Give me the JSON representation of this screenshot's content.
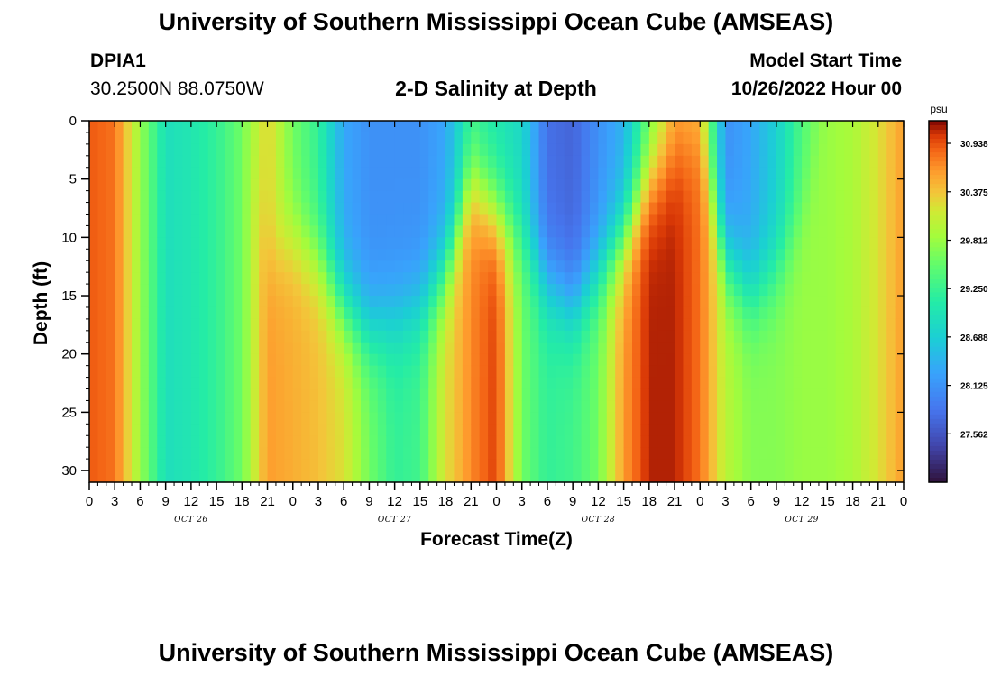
{
  "header": {
    "title": "University of Southern Mississippi Ocean Cube (AMSEAS)",
    "station_name": "DPIA1",
    "station_coords": "30.2500N  88.0750W",
    "subtitle": "2-D Salinity at Depth",
    "start_label": "Model Start Time",
    "start_value": "10/26/2022 Hour 00"
  },
  "footer": {
    "title": "University of Southern Mississippi Ocean Cube (AMSEAS)"
  },
  "chart_data": {
    "type": "heatmap",
    "title": "2-D Salinity at Depth",
    "xlabel": "Forecast Time(Z)",
    "ylabel": "Depth (ft)",
    "x_range_hours": [
      0,
      96
    ],
    "y_range_ft": [
      0,
      31
    ],
    "x_ticks_hours": [
      0,
      3,
      6,
      9,
      12,
      15,
      18,
      21,
      24,
      27,
      30,
      33,
      36,
      39,
      42,
      45,
      48,
      51,
      54,
      57,
      60,
      63,
      66,
      69,
      72,
      75,
      78,
      81,
      84,
      87,
      90,
      93,
      96
    ],
    "x_tick_labels": [
      "0",
      "3",
      "6",
      "9",
      "12",
      "15",
      "18",
      "21",
      "0",
      "3",
      "6",
      "9",
      "12",
      "15",
      "18",
      "21",
      "0",
      "3",
      "6",
      "9",
      "12",
      "15",
      "18",
      "21",
      "0",
      "3",
      "6",
      "9",
      "12",
      "15",
      "18",
      "21",
      "0"
    ],
    "y_ticks": [
      0,
      5,
      10,
      15,
      20,
      25,
      30
    ],
    "y_tick_labels": [
      "0",
      "5",
      "10",
      "15",
      "20",
      "25",
      "30"
    ],
    "day_labels": [
      {
        "label": "OCT 26",
        "hour": 12
      },
      {
        "label": "OCT 27",
        "hour": 36
      },
      {
        "label": "OCT 28",
        "hour": 60
      },
      {
        "label": "OCT 29",
        "hour": 84
      }
    ],
    "colorbar": {
      "unit": "psu",
      "min": 27.0,
      "max": 31.2,
      "ticks": [
        27.562,
        28.125,
        28.688,
        29.25,
        29.812,
        30.375,
        30.938
      ],
      "tick_labels": [
        "27.562",
        "28.125",
        "28.688",
        "29.250",
        "29.812",
        "30.375",
        "30.938"
      ]
    },
    "salinity_profile_columns": [
      {
        "hour": 0,
        "surface": 30.9,
        "bottom": 30.9,
        "halocline_ft": 0
      },
      {
        "hour": 3,
        "surface": 30.8,
        "bottom": 30.8,
        "halocline_ft": 0
      },
      {
        "hour": 6,
        "surface": 29.8,
        "bottom": 29.8,
        "halocline_ft": 0
      },
      {
        "hour": 9,
        "surface": 28.9,
        "bottom": 28.9,
        "halocline_ft": 0
      },
      {
        "hour": 12,
        "surface": 29.0,
        "bottom": 29.0,
        "halocline_ft": 0
      },
      {
        "hour": 15,
        "surface": 29.2,
        "bottom": 29.2,
        "halocline_ft": 0
      },
      {
        "hour": 18,
        "surface": 29.6,
        "bottom": 29.6,
        "halocline_ft": 0
      },
      {
        "hour": 21,
        "surface": 30.3,
        "bottom": 30.6,
        "halocline_ft": 12
      },
      {
        "hour": 24,
        "surface": 29.6,
        "bottom": 30.5,
        "halocline_ft": 10
      },
      {
        "hour": 27,
        "surface": 29.2,
        "bottom": 30.4,
        "halocline_ft": 12
      },
      {
        "hour": 30,
        "surface": 28.3,
        "bottom": 30.2,
        "halocline_ft": 16
      },
      {
        "hour": 33,
        "surface": 28.1,
        "bottom": 29.6,
        "halocline_ft": 18
      },
      {
        "hour": 36,
        "surface": 28.1,
        "bottom": 29.2,
        "halocline_ft": 17
      },
      {
        "hour": 39,
        "surface": 28.1,
        "bottom": 29.3,
        "halocline_ft": 16
      },
      {
        "hour": 42,
        "surface": 28.3,
        "bottom": 30.2,
        "halocline_ft": 13
      },
      {
        "hour": 45,
        "surface": 29.2,
        "bottom": 30.7,
        "halocline_ft": 5
      },
      {
        "hour": 48,
        "surface": 29.0,
        "bottom": 31.0,
        "halocline_ft": 8
      },
      {
        "hour": 51,
        "surface": 28.8,
        "bottom": 29.6,
        "halocline_ft": 10
      },
      {
        "hour": 54,
        "surface": 27.8,
        "bottom": 29.2,
        "halocline_ft": 14
      },
      {
        "hour": 57,
        "surface": 27.7,
        "bottom": 29.3,
        "halocline_ft": 16
      },
      {
        "hour": 60,
        "surface": 28.1,
        "bottom": 29.6,
        "halocline_ft": 13
      },
      {
        "hour": 63,
        "surface": 28.4,
        "bottom": 30.6,
        "halocline_ft": 10
      },
      {
        "hour": 66,
        "surface": 29.5,
        "bottom": 31.1,
        "halocline_ft": 5
      },
      {
        "hour": 69,
        "surface": 30.5,
        "bottom": 31.1,
        "halocline_ft": 3
      },
      {
        "hour": 72,
        "surface": 30.4,
        "bottom": 30.8,
        "halocline_ft": 2
      },
      {
        "hour": 75,
        "surface": 28.1,
        "bottom": 30.0,
        "halocline_ft": 12
      },
      {
        "hour": 78,
        "surface": 28.3,
        "bottom": 29.7,
        "halocline_ft": 15
      },
      {
        "hour": 81,
        "surface": 28.7,
        "bottom": 29.7,
        "halocline_ft": 13
      },
      {
        "hour": 84,
        "surface": 29.4,
        "bottom": 29.8,
        "halocline_ft": 8
      },
      {
        "hour": 87,
        "surface": 29.8,
        "bottom": 29.8,
        "halocline_ft": 0
      },
      {
        "hour": 90,
        "surface": 29.9,
        "bottom": 29.9,
        "halocline_ft": 0
      },
      {
        "hour": 93,
        "surface": 30.2,
        "bottom": 30.2,
        "halocline_ft": 0
      },
      {
        "hour": 96,
        "surface": 30.6,
        "bottom": 30.6,
        "halocline_ft": 0
      }
    ]
  }
}
